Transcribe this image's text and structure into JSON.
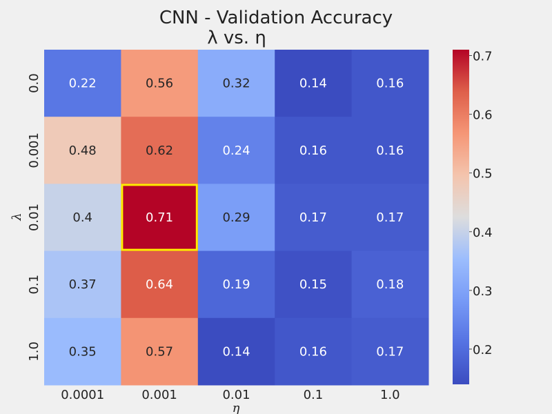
{
  "chart_data": {
    "type": "heatmap",
    "title_line1": "CNN      -      Validation Accuracy",
    "title_line2": "λ  vs. η",
    "xlabel": "η",
    "ylabel": "λ",
    "x_categories": [
      "0.0001",
      "0.001",
      "0.01",
      "0.1",
      "1.0"
    ],
    "y_categories": [
      "0.0",
      "0.001",
      "0.01",
      "0.1",
      "1.0"
    ],
    "values": [
      [
        0.22,
        0.56,
        0.32,
        0.14,
        0.16
      ],
      [
        0.48,
        0.62,
        0.24,
        0.16,
        0.16
      ],
      [
        0.4,
        0.71,
        0.29,
        0.17,
        0.17
      ],
      [
        0.37,
        0.64,
        0.19,
        0.15,
        0.18
      ],
      [
        0.35,
        0.57,
        0.14,
        0.16,
        0.17
      ]
    ],
    "cell_text": [
      [
        "0.22",
        "0.56",
        "0.32",
        "0.14",
        "0.16"
      ],
      [
        "0.48",
        "0.62",
        "0.24",
        "0.16",
        "0.16"
      ],
      [
        "0.4",
        "0.71",
        "0.29",
        "0.17",
        "0.17"
      ],
      [
        "0.37",
        "0.64",
        "0.19",
        "0.15",
        "0.18"
      ],
      [
        "0.35",
        "0.57",
        "0.14",
        "0.16",
        "0.17"
      ]
    ],
    "highlight": {
      "row": 2,
      "col": 1,
      "color": "#ffee00"
    },
    "colormap": "coolwarm",
    "colorbar": {
      "min": 0.14,
      "max": 0.71,
      "ticks": [
        0.2,
        0.3,
        0.4,
        0.5,
        0.6,
        0.7
      ],
      "tick_labels": [
        "0.2",
        "0.3",
        "0.4",
        "0.5",
        "0.6",
        "0.7"
      ]
    },
    "grid": false
  }
}
